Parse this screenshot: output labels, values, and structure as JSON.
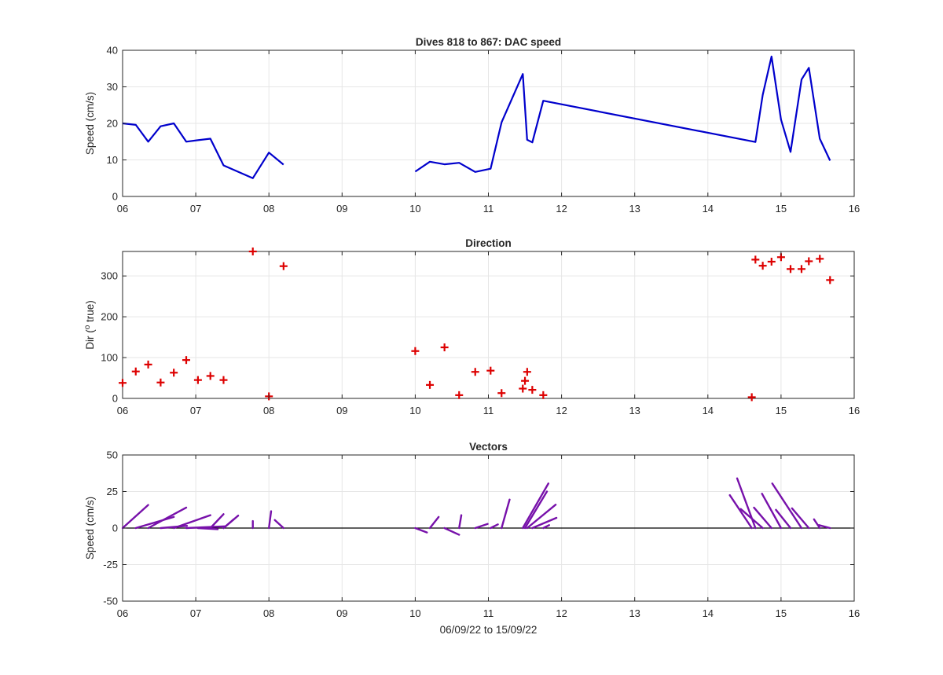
{
  "chart_data": [
    {
      "type": "line",
      "title": "Dives 818 to 867: DAC speed",
      "xlabel": "",
      "ylabel": "Speed (cm/s)",
      "xlim": [
        6,
        16
      ],
      "ylim": [
        0,
        40
      ],
      "xticks": [
        6,
        7,
        8,
        9,
        10,
        11,
        12,
        13,
        14,
        15,
        16
      ],
      "xticklabels": [
        "06",
        "07",
        "08",
        "09",
        "10",
        "11",
        "12",
        "13",
        "14",
        "15",
        "16"
      ],
      "yticks": [
        0,
        10,
        20,
        30,
        40
      ],
      "yticklabels": [
        "0",
        "10",
        "20",
        "30",
        "40"
      ],
      "grid": true,
      "color": "#0000cc",
      "series": [
        {
          "x": [
            6.0,
            6.18,
            6.35,
            6.52,
            6.7,
            6.87,
            7.03,
            7.2,
            7.38,
            7.78,
            8.0,
            8.2
          ],
          "y": [
            20.0,
            19.6,
            15.0,
            19.2,
            20.0,
            15.0,
            15.4,
            15.8,
            8.5,
            5.0,
            12.0,
            8.7
          ]
        },
        {
          "x": [
            10.0,
            10.2,
            10.4,
            10.6,
            10.82,
            11.03,
            11.18,
            11.47,
            11.53,
            11.6,
            11.75,
            14.65,
            14.75,
            14.87,
            15.0,
            15.13,
            15.28,
            15.38,
            15.53,
            15.67
          ],
          "y": [
            6.8,
            9.5,
            8.8,
            9.2,
            6.7,
            7.6,
            20.3,
            33.5,
            15.5,
            14.8,
            26.2,
            14.9,
            27.8,
            38.3,
            21.0,
            12.2,
            32.0,
            35.2,
            15.8,
            9.8
          ]
        }
      ]
    },
    {
      "type": "scatter",
      "title": "Direction",
      "xlabel": "",
      "ylabel": "Dir (° true)",
      "ylabel_parts": [
        "Dir (",
        "o",
        " true)"
      ],
      "xlim": [
        6,
        16
      ],
      "ylim": [
        0,
        360
      ],
      "xticks": [
        6,
        7,
        8,
        9,
        10,
        11,
        12,
        13,
        14,
        15,
        16
      ],
      "xticklabels": [
        "06",
        "07",
        "08",
        "09",
        "10",
        "11",
        "12",
        "13",
        "14",
        "15",
        "16"
      ],
      "yticks": [
        0,
        100,
        200,
        300
      ],
      "yticklabels": [
        "0",
        "100",
        "200",
        "300"
      ],
      "grid": true,
      "color": "#dd0000",
      "marker": "plus",
      "x": [
        6.0,
        6.18,
        6.35,
        6.52,
        6.7,
        6.87,
        7.03,
        7.2,
        7.38,
        7.78,
        8.0,
        8.2,
        10.0,
        10.2,
        10.4,
        10.6,
        10.82,
        11.03,
        11.18,
        11.47,
        11.5,
        11.53,
        11.6,
        11.75,
        14.6,
        14.65,
        14.75,
        14.87,
        15.0,
        15.13,
        15.28,
        15.38,
        15.53,
        15.67
      ],
      "y": [
        38,
        66,
        83,
        39,
        63,
        94,
        45,
        55,
        45,
        360,
        5,
        324,
        116,
        33,
        125,
        8,
        65,
        68,
        13,
        24,
        43,
        65,
        21,
        8,
        3,
        340,
        325,
        335,
        346,
        317,
        317,
        336,
        342,
        290
      ]
    },
    {
      "type": "line",
      "subtype": "vectors",
      "title": "Vectors",
      "xlabel": "06/09/22 to 15/09/22",
      "ylabel": "Speed (cm/s)",
      "xlim": [
        6,
        16
      ],
      "ylim": [
        -50,
        50
      ],
      "xticks": [
        6,
        7,
        8,
        9,
        10,
        11,
        12,
        13,
        14,
        15,
        16
      ],
      "xticklabels": [
        "06",
        "07",
        "08",
        "09",
        "10",
        "11",
        "12",
        "13",
        "14",
        "15",
        "16"
      ],
      "yticks": [
        -50,
        -25,
        0,
        25,
        50
      ],
      "yticklabels": [
        "-50",
        "-25",
        "0",
        "25",
        "50"
      ],
      "grid": true,
      "color": "#7711aa",
      "vectors": [
        {
          "x0": 6.0,
          "x1": 6.35,
          "y1": 15.8
        },
        {
          "x0": 6.18,
          "x1": 6.7,
          "y1": 7.6
        },
        {
          "x0": 6.35,
          "x1": 6.87,
          "y1": 14.0
        },
        {
          "x0": 6.52,
          "x1": 6.88,
          "y1": 1.5
        },
        {
          "x0": 6.7,
          "x1": 7.2,
          "y1": 8.8
        },
        {
          "x0": 6.87,
          "x1": 7.4,
          "y1": 1.2
        },
        {
          "x0": 7.03,
          "x1": 7.3,
          "y1": -0.8
        },
        {
          "x0": 7.2,
          "x1": 7.38,
          "y1": 9.5
        },
        {
          "x0": 7.38,
          "x1": 7.52,
          "y1": 6.0
        },
        {
          "x0": 7.38,
          "x1": 7.58,
          "y1": 8.5
        },
        {
          "x0": 7.78,
          "x1": 7.78,
          "y1": 4.8
        },
        {
          "x0": 8.0,
          "x1": 8.03,
          "y1": 11.5
        },
        {
          "x0": 8.2,
          "x1": 8.08,
          "y1": 5.5
        },
        {
          "x0": 10.0,
          "x1": 10.16,
          "y1": -3.0
        },
        {
          "x0": 10.2,
          "x1": 10.32,
          "y1": 7.6
        },
        {
          "x0": 10.4,
          "x1": 10.6,
          "y1": -4.6
        },
        {
          "x0": 10.6,
          "x1": 10.63,
          "y1": 8.8
        },
        {
          "x0": 10.82,
          "x1": 10.99,
          "y1": 2.8
        },
        {
          "x0": 11.03,
          "x1": 11.13,
          "y1": 2.5
        },
        {
          "x0": 11.18,
          "x1": 11.29,
          "y1": 19.5
        },
        {
          "x0": 11.47,
          "x1": 11.82,
          "y1": 30.5
        },
        {
          "x0": 11.5,
          "x1": 11.8,
          "y1": 25.0
        },
        {
          "x0": 11.53,
          "x1": 11.92,
          "y1": 16.0
        },
        {
          "x0": 11.6,
          "x1": 11.93,
          "y1": 7.0
        },
        {
          "x0": 11.75,
          "x1": 11.83,
          "y1": 2.0
        },
        {
          "x0": 14.6,
          "x1": 14.3,
          "y1": 22.5
        },
        {
          "x0": 14.65,
          "x1": 14.4,
          "y1": 34.0
        },
        {
          "x0": 14.75,
          "x1": 14.45,
          "y1": 13.0
        },
        {
          "x0": 14.87,
          "x1": 14.63,
          "y1": 14.0
        },
        {
          "x0": 15.0,
          "x1": 14.74,
          "y1": 23.5
        },
        {
          "x0": 15.13,
          "x1": 14.93,
          "y1": 12.5
        },
        {
          "x0": 15.28,
          "x1": 14.88,
          "y1": 30.5
        },
        {
          "x0": 15.38,
          "x1": 15.15,
          "y1": 13.5
        },
        {
          "x0": 15.53,
          "x1": 15.45,
          "y1": 6.0
        },
        {
          "x0": 15.67,
          "x1": 15.52,
          "y1": 2.0
        }
      ]
    }
  ]
}
